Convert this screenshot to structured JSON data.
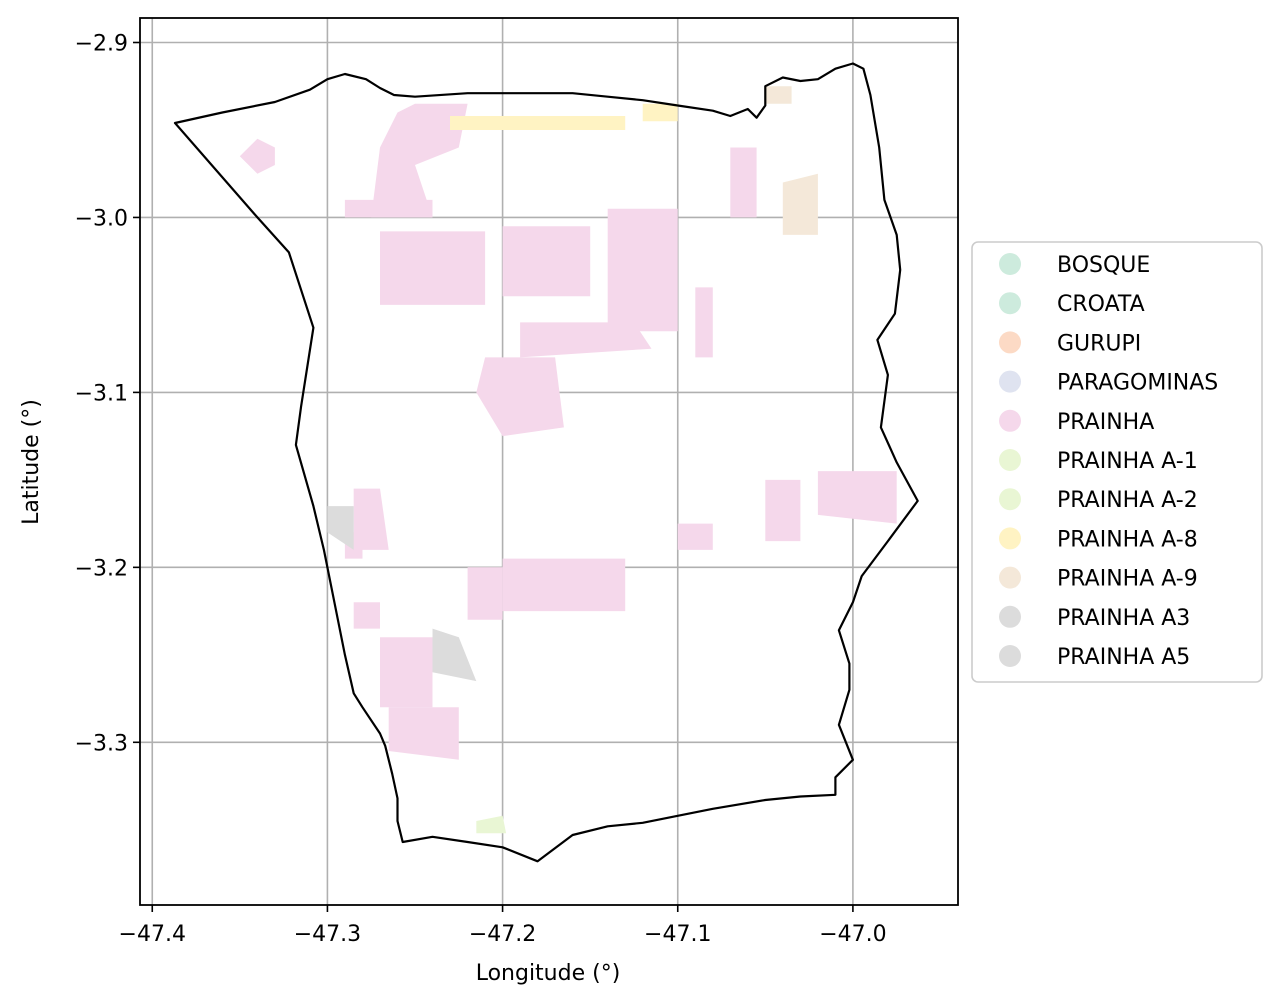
{
  "chart_data": {
    "type": "map",
    "xlabel": "Longitude (°)",
    "ylabel": "Latitude (°)",
    "xlim": [
      -47.407,
      -46.94
    ],
    "ylim": [
      -3.393,
      -2.886
    ],
    "x_ticks": [
      -47.4,
      -47.3,
      -47.2,
      -47.1,
      -47.0
    ],
    "x_tick_labels": [
      "−47.4",
      "−47.3",
      "−47.2",
      "−47.1",
      "−47.0"
    ],
    "y_ticks": [
      -2.9,
      -3.0,
      -3.1,
      -3.2,
      -3.3
    ],
    "y_tick_labels": [
      "−2.9",
      "−3.0",
      "−3.1",
      "−3.2",
      "−3.3"
    ],
    "grid": true,
    "legend_position": "right, outside plot",
    "legend": [
      {
        "label": "BOSQUE",
        "color": "#cdebdd"
      },
      {
        "label": "CROATA",
        "color": "#cdebdd"
      },
      {
        "label": "GURUPI",
        "color": "#fcdac5"
      },
      {
        "label": "PARAGOMINAS",
        "color": "#dfe3f0"
      },
      {
        "label": "PRAINHA",
        "color": "#f5d8eb"
      },
      {
        "label": "PRAINHA A-1",
        "color": "#e9f6d4"
      },
      {
        "label": "PRAINHA A-2",
        "color": "#e9f6d4"
      },
      {
        "label": "PRAINHA A-8",
        "color": "#fff3c3"
      },
      {
        "label": "PRAINHA A-9",
        "color": "#f4e8d9"
      },
      {
        "label": "PRAINHA A3",
        "color": "#dcdcdc"
      },
      {
        "label": "PRAINHA A5",
        "color": "#dcdcdc"
      }
    ],
    "boundary": [
      [
        -47.387,
        -2.946
      ],
      [
        -47.36,
        -2.94
      ],
      [
        -47.33,
        -2.934
      ],
      [
        -47.31,
        -2.927
      ],
      [
        -47.3,
        -2.921
      ],
      [
        -47.29,
        -2.918
      ],
      [
        -47.278,
        -2.921
      ],
      [
        -47.27,
        -2.926
      ],
      [
        -47.262,
        -2.93
      ],
      [
        -47.25,
        -2.931
      ],
      [
        -47.22,
        -2.929
      ],
      [
        -47.2,
        -2.929
      ],
      [
        -47.18,
        -2.929
      ],
      [
        -47.16,
        -2.929
      ],
      [
        -47.14,
        -2.931
      ],
      [
        -47.12,
        -2.933
      ],
      [
        -47.1,
        -2.936
      ],
      [
        -47.08,
        -2.939
      ],
      [
        -47.07,
        -2.942
      ],
      [
        -47.06,
        -2.938
      ],
      [
        -47.055,
        -2.943
      ],
      [
        -47.05,
        -2.936
      ],
      [
        -47.05,
        -2.925
      ],
      [
        -47.04,
        -2.92
      ],
      [
        -47.03,
        -2.922
      ],
      [
        -47.02,
        -2.921
      ],
      [
        -47.01,
        -2.915
      ],
      [
        -47.0,
        -2.912
      ],
      [
        -46.994,
        -2.915
      ],
      [
        -46.99,
        -2.93
      ],
      [
        -46.985,
        -2.96
      ],
      [
        -46.982,
        -2.99
      ],
      [
        -46.975,
        -3.01
      ],
      [
        -46.973,
        -3.03
      ],
      [
        -46.976,
        -3.055
      ],
      [
        -46.986,
        -3.07
      ],
      [
        -46.98,
        -3.09
      ],
      [
        -46.984,
        -3.12
      ],
      [
        -46.975,
        -3.14
      ],
      [
        -46.963,
        -3.162
      ],
      [
        -46.98,
        -3.185
      ],
      [
        -46.995,
        -3.205
      ],
      [
        -47.0,
        -3.22
      ],
      [
        -47.008,
        -3.236
      ],
      [
        -47.002,
        -3.255
      ],
      [
        -47.002,
        -3.27
      ],
      [
        -47.008,
        -3.29
      ],
      [
        -47.0,
        -3.31
      ],
      [
        -47.01,
        -3.32
      ],
      [
        -47.01,
        -3.33
      ],
      [
        -47.03,
        -3.331
      ],
      [
        -47.05,
        -3.333
      ],
      [
        -47.08,
        -3.338
      ],
      [
        -47.1,
        -3.342
      ],
      [
        -47.12,
        -3.346
      ],
      [
        -47.14,
        -3.348
      ],
      [
        -47.16,
        -3.353
      ],
      [
        -47.18,
        -3.368
      ],
      [
        -47.2,
        -3.36
      ],
      [
        -47.22,
        -3.357
      ],
      [
        -47.24,
        -3.354
      ],
      [
        -47.257,
        -3.357
      ],
      [
        -47.26,
        -3.345
      ],
      [
        -47.26,
        -3.332
      ],
      [
        -47.263,
        -3.318
      ],
      [
        -47.267,
        -3.302
      ],
      [
        -47.27,
        -3.295
      ],
      [
        -47.28,
        -3.28
      ],
      [
        -47.285,
        -3.272
      ],
      [
        -47.29,
        -3.25
      ],
      [
        -47.296,
        -3.22
      ],
      [
        -47.302,
        -3.19
      ],
      [
        -47.308,
        -3.165
      ],
      [
        -47.318,
        -3.13
      ],
      [
        -47.315,
        -3.108
      ],
      [
        -47.308,
        -3.063
      ],
      [
        -47.322,
        -3.02
      ],
      [
        -47.34,
        -3.0
      ],
      [
        -47.387,
        -2.946
      ]
    ],
    "regions": [
      {
        "name": "PRAINHA",
        "points": [
          [
            -47.25,
            -2.935
          ],
          [
            -47.22,
            -2.935
          ],
          [
            -47.225,
            -2.96
          ],
          [
            -47.25,
            -2.97
          ],
          [
            -47.24,
            -3.0
          ],
          [
            -47.275,
            -3.0
          ],
          [
            -47.27,
            -2.96
          ],
          [
            -47.26,
            -2.94
          ],
          [
            -47.25,
            -2.935
          ]
        ]
      },
      {
        "name": "PRAINHA",
        "points": [
          [
            -47.29,
            -2.99
          ],
          [
            -47.24,
            -2.99
          ],
          [
            -47.24,
            -3.0
          ],
          [
            -47.29,
            -3.0
          ]
        ]
      },
      {
        "name": "PRAINHA",
        "points": [
          [
            -47.34,
            -2.955
          ],
          [
            -47.33,
            -2.96
          ],
          [
            -47.33,
            -2.97
          ],
          [
            -47.34,
            -2.975
          ],
          [
            -47.35,
            -2.965
          ]
        ]
      },
      {
        "name": "PRAINHA",
        "points": [
          [
            -47.27,
            -3.008
          ],
          [
            -47.21,
            -3.008
          ],
          [
            -47.21,
            -3.05
          ],
          [
            -47.27,
            -3.05
          ]
        ]
      },
      {
        "name": "PRAINHA",
        "points": [
          [
            -47.2,
            -3.005
          ],
          [
            -47.15,
            -3.005
          ],
          [
            -47.15,
            -3.045
          ],
          [
            -47.2,
            -3.045
          ]
        ]
      },
      {
        "name": "PRAINHA",
        "points": [
          [
            -47.14,
            -2.995
          ],
          [
            -47.1,
            -2.995
          ],
          [
            -47.1,
            -3.065
          ],
          [
            -47.14,
            -3.065
          ]
        ]
      },
      {
        "name": "PRAINHA",
        "points": [
          [
            -47.19,
            -3.06
          ],
          [
            -47.125,
            -3.06
          ],
          [
            -47.115,
            -3.075
          ],
          [
            -47.19,
            -3.08
          ]
        ]
      },
      {
        "name": "PRAINHA",
        "points": [
          [
            -47.21,
            -3.08
          ],
          [
            -47.17,
            -3.08
          ],
          [
            -47.165,
            -3.12
          ],
          [
            -47.2,
            -3.125
          ],
          [
            -47.215,
            -3.1
          ]
        ]
      },
      {
        "name": "PRAINHA",
        "points": [
          [
            -47.09,
            -3.04
          ],
          [
            -47.08,
            -3.04
          ],
          [
            -47.08,
            -3.08
          ],
          [
            -47.09,
            -3.08
          ]
        ]
      },
      {
        "name": "PRAINHA",
        "points": [
          [
            -47.07,
            -2.96
          ],
          [
            -47.055,
            -2.96
          ],
          [
            -47.055,
            -3.0
          ],
          [
            -47.07,
            -3.0
          ]
        ]
      },
      {
        "name": "PRAINHA",
        "points": [
          [
            -47.285,
            -3.155
          ],
          [
            -47.27,
            -3.155
          ],
          [
            -47.265,
            -3.19
          ],
          [
            -47.285,
            -3.19
          ]
        ]
      },
      {
        "name": "PRAINHA",
        "points": [
          [
            -47.05,
            -3.15
          ],
          [
            -47.03,
            -3.15
          ],
          [
            -47.03,
            -3.185
          ],
          [
            -47.05,
            -3.185
          ]
        ]
      },
      {
        "name": "PRAINHA",
        "points": [
          [
            -47.02,
            -3.145
          ],
          [
            -46.975,
            -3.145
          ],
          [
            -46.975,
            -3.175
          ],
          [
            -47.02,
            -3.17
          ]
        ]
      },
      {
        "name": "PRAINHA",
        "points": [
          [
            -47.1,
            -3.175
          ],
          [
            -47.08,
            -3.175
          ],
          [
            -47.08,
            -3.19
          ],
          [
            -47.1,
            -3.19
          ]
        ]
      },
      {
        "name": "PRAINHA",
        "points": [
          [
            -47.2,
            -3.195
          ],
          [
            -47.13,
            -3.195
          ],
          [
            -47.13,
            -3.225
          ],
          [
            -47.2,
            -3.225
          ]
        ]
      },
      {
        "name": "PRAINHA",
        "points": [
          [
            -47.22,
            -3.2
          ],
          [
            -47.2,
            -3.2
          ],
          [
            -47.2,
            -3.23
          ],
          [
            -47.22,
            -3.23
          ]
        ]
      },
      {
        "name": "PRAINHA",
        "points": [
          [
            -47.27,
            -3.24
          ],
          [
            -47.24,
            -3.24
          ],
          [
            -47.24,
            -3.28
          ],
          [
            -47.27,
            -3.28
          ]
        ]
      },
      {
        "name": "PRAINHA",
        "points": [
          [
            -47.265,
            -3.28
          ],
          [
            -47.225,
            -3.28
          ],
          [
            -47.225,
            -3.31
          ],
          [
            -47.265,
            -3.305
          ]
        ]
      },
      {
        "name": "PRAINHA",
        "points": [
          [
            -47.29,
            -3.18
          ],
          [
            -47.28,
            -3.18
          ],
          [
            -47.28,
            -3.195
          ],
          [
            -47.29,
            -3.195
          ]
        ]
      },
      {
        "name": "PRAINHA",
        "points": [
          [
            -47.285,
            -3.22
          ],
          [
            -47.27,
            -3.22
          ],
          [
            -47.27,
            -3.235
          ],
          [
            -47.285,
            -3.235
          ]
        ]
      },
      {
        "name": "PRAINHA A-8",
        "points": [
          [
            -47.23,
            -2.942
          ],
          [
            -47.13,
            -2.942
          ],
          [
            -47.13,
            -2.95
          ],
          [
            -47.23,
            -2.95
          ]
        ]
      },
      {
        "name": "PRAINHA A-8",
        "points": [
          [
            -47.12,
            -2.935
          ],
          [
            -47.1,
            -2.935
          ],
          [
            -47.1,
            -2.945
          ],
          [
            -47.12,
            -2.945
          ]
        ]
      },
      {
        "name": "PRAINHA A-9",
        "points": [
          [
            -47.04,
            -2.98
          ],
          [
            -47.02,
            -2.975
          ],
          [
            -47.02,
            -3.01
          ],
          [
            -47.04,
            -3.01
          ]
        ]
      },
      {
        "name": "PRAINHA A-9",
        "points": [
          [
            -47.05,
            -2.925
          ],
          [
            -47.035,
            -2.925
          ],
          [
            -47.035,
            -2.935
          ],
          [
            -47.05,
            -2.935
          ]
        ]
      },
      {
        "name": "PRAINHA A3",
        "points": [
          [
            -47.3,
            -3.165
          ],
          [
            -47.285,
            -3.165
          ],
          [
            -47.285,
            -3.19
          ],
          [
            -47.3,
            -3.18
          ]
        ]
      },
      {
        "name": "PRAINHA A3",
        "points": [
          [
            -47.24,
            -3.235
          ],
          [
            -47.225,
            -3.24
          ],
          [
            -47.215,
            -3.265
          ],
          [
            -47.24,
            -3.26
          ]
        ]
      },
      {
        "name": "PRAINHA A-1",
        "points": [
          [
            -47.215,
            -3.345
          ],
          [
            -47.2,
            -3.342
          ],
          [
            -47.198,
            -3.352
          ],
          [
            -47.215,
            -3.352
          ]
        ]
      }
    ]
  }
}
